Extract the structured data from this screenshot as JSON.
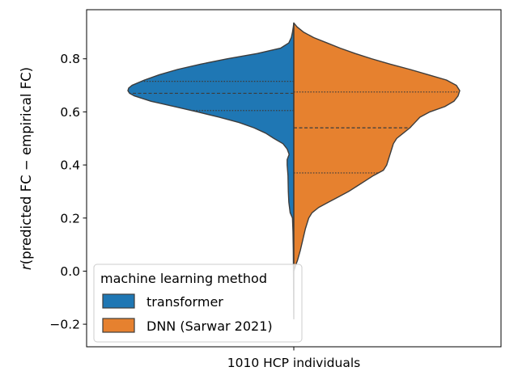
{
  "chart_data": {
    "type": "violin",
    "split": true,
    "title": "",
    "xlabel": "",
    "ylabel_prefix": "r",
    "ylabel_rest": "(predicted FC − empirical FC)",
    "categories": [
      "1010 HCP individuals"
    ],
    "ylim": [
      -0.285,
      0.985
    ],
    "yticks": [
      -0.2,
      0.0,
      0.2,
      0.4,
      0.6,
      0.8
    ],
    "ytick_labels": [
      "−0.2",
      "0.0",
      "0.2",
      "0.4",
      "0.6",
      "0.8"
    ],
    "grid": false,
    "legend": {
      "title": "machine learning method",
      "placement": "lower-left"
    },
    "series": [
      {
        "name": "transformer",
        "side": "left",
        "color": "#1f77b4",
        "quartiles": [
          0.605,
          0.67,
          0.715
        ],
        "density_profile": [
          [
            0.935,
            0.0
          ],
          [
            0.92,
            0.003
          ],
          [
            0.9,
            0.008
          ],
          [
            0.88,
            0.015
          ],
          [
            0.86,
            0.03
          ],
          [
            0.84,
            0.08
          ],
          [
            0.82,
            0.22
          ],
          [
            0.8,
            0.4
          ],
          [
            0.78,
            0.56
          ],
          [
            0.76,
            0.7
          ],
          [
            0.74,
            0.81
          ],
          [
            0.72,
            0.9
          ],
          [
            0.7,
            0.975
          ],
          [
            0.69,
            0.995
          ],
          [
            0.68,
            1.0
          ],
          [
            0.67,
            0.99
          ],
          [
            0.66,
            0.96
          ],
          [
            0.64,
            0.86
          ],
          [
            0.62,
            0.72
          ],
          [
            0.6,
            0.58
          ],
          [
            0.58,
            0.45
          ],
          [
            0.56,
            0.33
          ],
          [
            0.54,
            0.24
          ],
          [
            0.52,
            0.17
          ],
          [
            0.5,
            0.12
          ],
          [
            0.48,
            0.065
          ],
          [
            0.46,
            0.04
          ],
          [
            0.44,
            0.028
          ],
          [
            0.42,
            0.04
          ],
          [
            0.4,
            0.04
          ],
          [
            0.36,
            0.035
          ],
          [
            0.3,
            0.033
          ],
          [
            0.26,
            0.03
          ],
          [
            0.22,
            0.022
          ],
          [
            0.2,
            0.008
          ],
          [
            0.15,
            0.005
          ],
          [
            0.08,
            0.003
          ],
          [
            0.0,
            0.002
          ],
          [
            -0.1,
            0.001
          ],
          [
            -0.18,
            0.0
          ]
        ]
      },
      {
        "name": "DNN (Sarwar 2021)",
        "side": "right",
        "color": "#e6812f",
        "quartiles": [
          0.37,
          0.54,
          0.675
        ],
        "density_profile": [
          [
            0.935,
            0.0
          ],
          [
            0.92,
            0.02
          ],
          [
            0.9,
            0.06
          ],
          [
            0.88,
            0.12
          ],
          [
            0.86,
            0.2
          ],
          [
            0.84,
            0.28
          ],
          [
            0.82,
            0.37
          ],
          [
            0.8,
            0.47
          ],
          [
            0.78,
            0.58
          ],
          [
            0.76,
            0.7
          ],
          [
            0.74,
            0.81
          ],
          [
            0.72,
            0.92
          ],
          [
            0.7,
            0.98
          ],
          [
            0.68,
            1.0
          ],
          [
            0.66,
            0.99
          ],
          [
            0.64,
            0.965
          ],
          [
            0.62,
            0.91
          ],
          [
            0.6,
            0.82
          ],
          [
            0.58,
            0.76
          ],
          [
            0.56,
            0.73
          ],
          [
            0.54,
            0.7
          ],
          [
            0.52,
            0.66
          ],
          [
            0.5,
            0.62
          ],
          [
            0.48,
            0.6
          ],
          [
            0.46,
            0.59
          ],
          [
            0.44,
            0.58
          ],
          [
            0.42,
            0.57
          ],
          [
            0.4,
            0.56
          ],
          [
            0.38,
            0.54
          ],
          [
            0.36,
            0.48
          ],
          [
            0.34,
            0.43
          ],
          [
            0.32,
            0.38
          ],
          [
            0.3,
            0.33
          ],
          [
            0.28,
            0.27
          ],
          [
            0.26,
            0.21
          ],
          [
            0.24,
            0.15
          ],
          [
            0.22,
            0.11
          ],
          [
            0.2,
            0.09
          ],
          [
            0.18,
            0.08
          ],
          [
            0.16,
            0.07
          ],
          [
            0.12,
            0.055
          ],
          [
            0.08,
            0.04
          ],
          [
            0.04,
            0.022
          ],
          [
            0.02,
            0.01
          ],
          [
            0.0,
            0.0
          ]
        ]
      }
    ]
  }
}
